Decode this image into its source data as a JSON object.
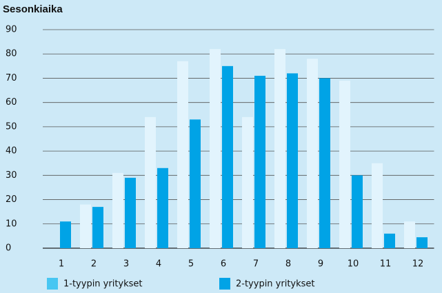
{
  "chart_data": {
    "type": "bar",
    "title": "Sesonkiaika",
    "categories": [
      "1",
      "2",
      "3",
      "4",
      "5",
      "6",
      "7",
      "8",
      "9",
      "10",
      "11",
      "12"
    ],
    "series": [
      {
        "name": "1-tyypin yritykset",
        "color": "#e2f4fd",
        "values": [
          0,
          18,
          31,
          54,
          77,
          82,
          54,
          82,
          78,
          69,
          35,
          11
        ]
      },
      {
        "name": "2-tyypin yritykset",
        "color": "#00a3e6",
        "values": [
          11,
          17,
          29,
          33,
          53,
          75,
          71,
          72,
          70,
          30,
          6,
          4.5
        ]
      }
    ],
    "ylim": [
      0,
      90
    ],
    "yticks": [
      0,
      10,
      20,
      30,
      40,
      50,
      60,
      70,
      80,
      90
    ],
    "grid": true,
    "legend": "bottom"
  }
}
